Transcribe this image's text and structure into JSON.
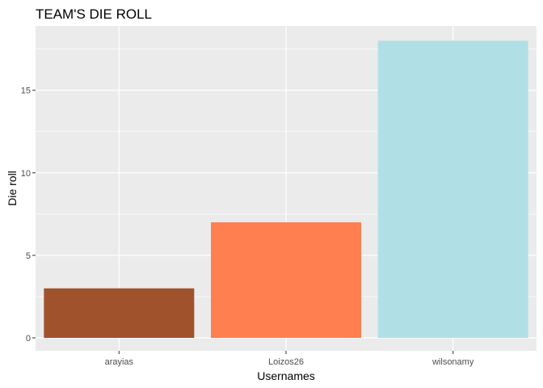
{
  "chart_data": {
    "type": "bar",
    "title": "TEAM'S DIE ROLL",
    "xlabel": "Usernames",
    "ylabel": "Die roll",
    "categories": [
      "arayias",
      "Loizos26",
      "wilsonamy"
    ],
    "values": [
      3,
      7,
      18
    ],
    "bar_colors": [
      "#A0522D",
      "#FF7F50",
      "#B0E0E6"
    ],
    "ylim": [
      0,
      18.9
    ],
    "yticks": [
      0,
      5,
      10,
      15
    ],
    "ytick_labels": [
      "0",
      "5",
      "10",
      "15"
    ],
    "grid": true,
    "panel_background": "#EBEBEB",
    "grid_color": "#FFFFFF"
  }
}
